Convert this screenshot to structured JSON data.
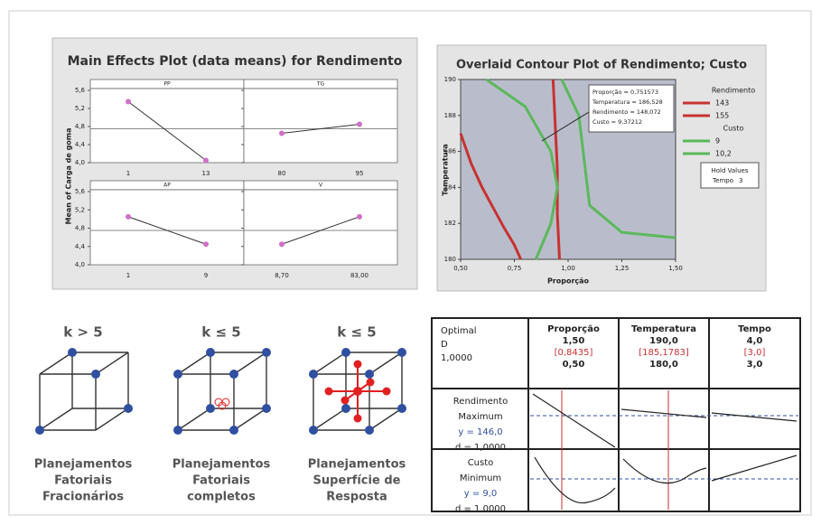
{
  "chart_data": [
    {
      "type": "main-effects",
      "title": "Main Effects Plot (data means) for Rendimento",
      "ylabel": "Mean of Carga de goma",
      "ylim": [
        4.0,
        5.6
      ],
      "yticks": [
        {
          "value": 4.0,
          "label": "4,0"
        },
        {
          "value": 4.4,
          "label": "4,4"
        },
        {
          "value": 4.8,
          "label": "4,8"
        },
        {
          "value": 5.2,
          "label": "5,2"
        },
        {
          "value": 5.6,
          "label": "5,6"
        }
      ],
      "reference": 4.75,
      "color": "#d070c8",
      "panels": [
        {
          "title": "PP",
          "categories": [
            "1",
            "13"
          ],
          "values": [
            5.35,
            4.05
          ]
        },
        {
          "title": "TG",
          "categories": [
            "80",
            "95"
          ],
          "values": [
            4.65,
            4.85
          ]
        },
        {
          "title": "AP",
          "categories": [
            "1",
            "9"
          ],
          "values": [
            5.05,
            4.45
          ]
        },
        {
          "title": "V",
          "categories": [
            "8,70",
            "83,00"
          ],
          "values": [
            4.45,
            5.05
          ]
        }
      ]
    },
    {
      "type": "contour",
      "title": "Overlaid Contour Plot of Rendimento; Custo",
      "xlabel": "Proporção",
      "ylabel": "Temperatura",
      "xlim": [
        0.5,
        1.5
      ],
      "xticks": [
        {
          "value": 0.5,
          "label": "0,50"
        },
        {
          "value": 0.75,
          "label": "0,75"
        },
        {
          "value": 1.0,
          "label": "1,00"
        },
        {
          "value": 1.25,
          "label": "1,25"
        },
        {
          "value": 1.5,
          "label": "1,50"
        }
      ],
      "ylim": [
        180,
        190
      ],
      "yticks": [
        180,
        182,
        184,
        186,
        188,
        190
      ],
      "series_groups": [
        {
          "name": "Rendimento",
          "series": [
            {
              "name": "143",
              "color": "#c83232",
              "x": [
                0.5,
                0.55,
                0.6,
                0.65,
                0.7,
                0.75,
                0.78
              ],
              "y": [
                187,
                185.3,
                184,
                182.9,
                181.8,
                180.8,
                180
              ]
            },
            {
              "name": "155",
              "color": "#c83232",
              "x": [
                0.93,
                0.94,
                0.95,
                0.95,
                0.96
              ],
              "y": [
                190,
                187.5,
                185,
                182.5,
                180
              ]
            }
          ]
        },
        {
          "name": "Custo",
          "series": [
            {
              "name": "9",
              "color": "#5cb85c",
              "x": [
                0.62,
                0.8,
                0.92,
                0.95,
                0.92,
                0.85
              ],
              "y": [
                190,
                188.5,
                186,
                184,
                182,
                180
              ]
            },
            {
              "name": "10,2",
              "color": "#5cb85c",
              "x": [
                0.97,
                1.05,
                1.07,
                1.1,
                1.25,
                1.5
              ],
              "y": [
                190,
                188,
                186,
                183,
                181.5,
                181.2
              ]
            }
          ]
        }
      ],
      "annotation": [
        "Proporção = 0,751573",
        "Temperatura = 186,528",
        "Rendimento = 148,072",
        "Custo = 9,37212"
      ],
      "hold_title": "Hold Values",
      "hold_label": "Tempo",
      "hold_value": 3
    }
  ],
  "designs": [
    {
      "label": "k > 5",
      "caption": [
        "Planejamentos",
        "Fatoriais",
        "Fracionários"
      ]
    },
    {
      "label": "k ≤ 5",
      "caption": [
        "Planejamentos",
        "Fatoriais",
        "completos"
      ]
    },
    {
      "label": "k ≤ 5",
      "caption": [
        "Planejamentos",
        "Superfície de",
        "Resposta"
      ]
    }
  ],
  "optimizer": {
    "optimal": "Optimal",
    "d_label": "D",
    "d_value": "1,0000",
    "columns": [
      {
        "name": "Proporção",
        "high": "1,50",
        "current": "[0,8435]",
        "low": "0,50"
      },
      {
        "name": "Temperatura",
        "high": "190,0",
        "current": "[185,1783]",
        "low": "180,0"
      },
      {
        "name": "Tempo",
        "high": "4,0",
        "current": "[3,0]",
        "low": "3,0"
      }
    ],
    "responses": [
      {
        "name": "Rendimento",
        "goal": "Maximum",
        "y": "y = 146,0",
        "d": "d = 1,0000"
      },
      {
        "name": "Custo",
        "goal": "Minimum",
        "y": "y = 9,0",
        "d": "d = 1,0000"
      }
    ]
  }
}
